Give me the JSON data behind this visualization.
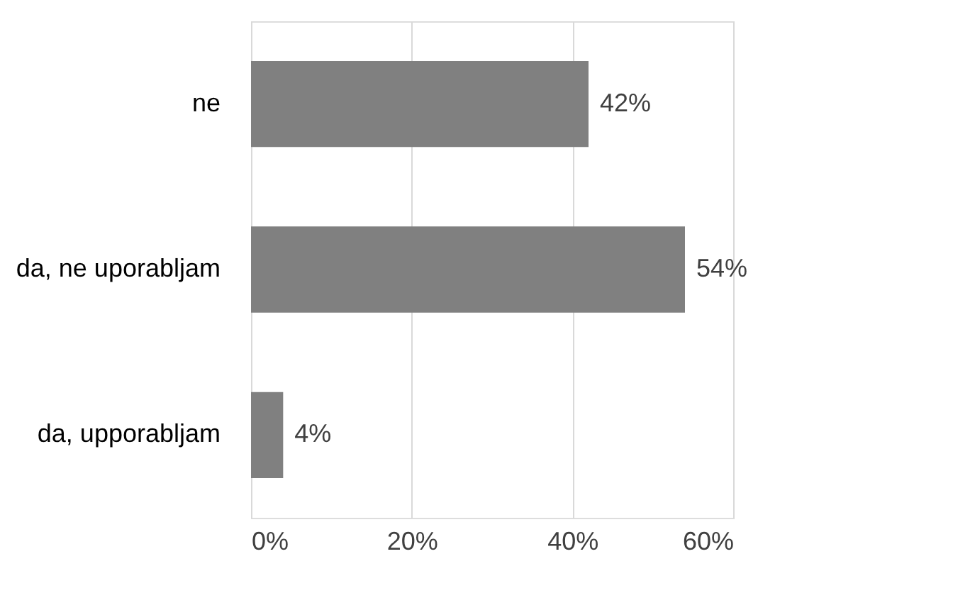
{
  "chart_data": {
    "type": "bar",
    "orientation": "horizontal",
    "categories": [
      "ne",
      "da, ne uporabljam",
      "da, upporabljam"
    ],
    "values": [
      42,
      54,
      4
    ],
    "value_labels": [
      "42%",
      "54%",
      "4%"
    ],
    "color": "#808080",
    "xlim": [
      0,
      60
    ],
    "xticks": [
      {
        "value": 0,
        "label": "0%"
      },
      {
        "value": 20,
        "label": "20%"
      },
      {
        "value": 40,
        "label": "40%"
      },
      {
        "value": 60,
        "label": "60%"
      }
    ],
    "grid": "x"
  }
}
